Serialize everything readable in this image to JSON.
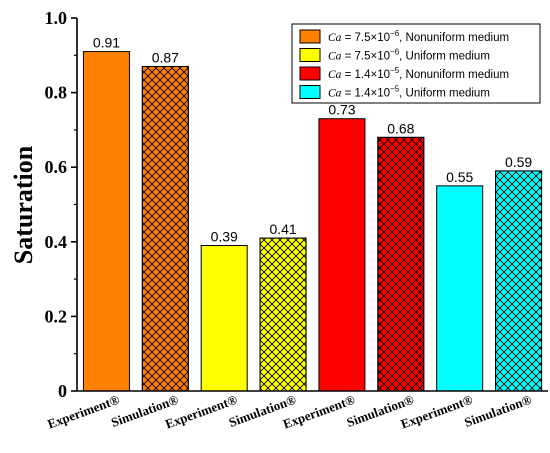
{
  "chart_data": {
    "type": "bar",
    "title": "",
    "xlabel": "",
    "ylabel": "Saturation",
    "ylim": [
      0,
      1.0
    ],
    "yticks": [
      "0",
      "0.2",
      "0.4",
      "0.6",
      "0.8",
      "1.0"
    ],
    "grid": false,
    "legend_position": "top-right",
    "categories": [
      "Experiment",
      "Simulation",
      "Experiment",
      "Simulation",
      "Experiment",
      "Simulation",
      "Experiment",
      "Simulation"
    ],
    "category_suffix": "®",
    "values": [
      0.91,
      0.87,
      0.39,
      0.41,
      0.73,
      0.68,
      0.55,
      0.59
    ],
    "value_labels": [
      "0.91",
      "0.87",
      "0.39",
      "0.41",
      "0.73",
      "0.68",
      "0.55",
      "0.59"
    ],
    "bar_colors": [
      "#ff8000",
      "#ff8000",
      "#ffff00",
      "#ffff00",
      "#ff0000",
      "#ff0000",
      "#00ffff",
      "#00ffff"
    ],
    "bar_patterns": [
      "solid",
      "crosshatch",
      "solid",
      "crosshatch",
      "solid",
      "crosshatch",
      "solid",
      "crosshatch"
    ],
    "series": [
      {
        "name_var": "Ca",
        "name_eq": " = 7.5×10",
        "name_exp": "−6",
        "name_desc": ",  Nonuniform medium",
        "color": "#ff8000"
      },
      {
        "name_var": "Ca",
        "name_eq": " = 7.5×10",
        "name_exp": "−6",
        "name_desc": ",  Uniform medium",
        "color": "#ffff00"
      },
      {
        "name_var": "Ca",
        "name_eq": " = 1.4×10",
        "name_exp": "−5",
        "name_desc": ",  Nonuniform medium",
        "color": "#ff0000"
      },
      {
        "name_var": "Ca",
        "name_eq": " = 1.4×10",
        "name_exp": "−5",
        "name_desc": ",  Uniform medium",
        "color": "#00ffff"
      }
    ]
  }
}
